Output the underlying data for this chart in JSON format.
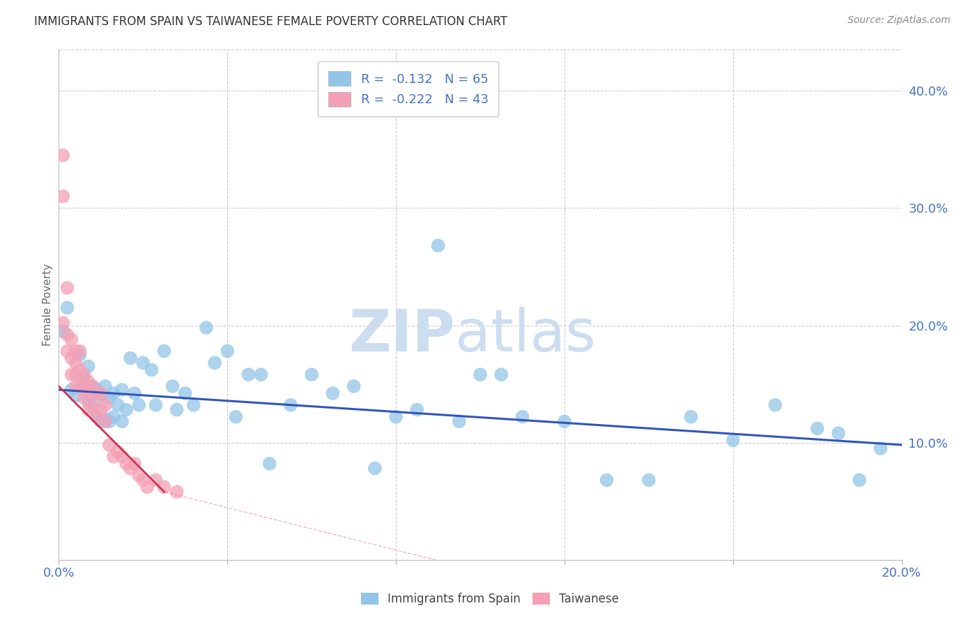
{
  "title": "IMMIGRANTS FROM SPAIN VS TAIWANESE FEMALE POVERTY CORRELATION CHART",
  "source": "Source: ZipAtlas.com",
  "ylabel": "Female Poverty",
  "x_min": 0.0,
  "x_max": 0.2,
  "y_min": 0.0,
  "y_max": 0.435,
  "x_ticks": [
    0.0,
    0.04,
    0.08,
    0.12,
    0.16,
    0.2
  ],
  "y_ticks_right": [
    0.1,
    0.2,
    0.3,
    0.4
  ],
  "y_tick_labels_right": [
    "10.0%",
    "20.0%",
    "30.0%",
    "40.0%"
  ],
  "legend_label1": "Immigrants from Spain",
  "legend_label2": "Taiwanese",
  "r1": -0.132,
  "n1": 65,
  "r2": -0.222,
  "n2": 43,
  "color_blue": "#92C5E8",
  "color_pink": "#F4A0B5",
  "color_line_blue": "#3355BB",
  "color_line_pink": "#CC3355",
  "color_axis_text": "#4472C4",
  "color_grid": "#cccccc",
  "watermark_zip": "ZIP",
  "watermark_atlas": "atlas",
  "blue_line_x": [
    0.0,
    0.2
  ],
  "blue_line_y": [
    0.145,
    0.098
  ],
  "pink_line_x": [
    0.0,
    0.025
  ],
  "pink_line_y": [
    0.148,
    0.058
  ],
  "blue_dots_x": [
    0.001,
    0.002,
    0.003,
    0.004,
    0.005,
    0.006,
    0.006,
    0.007,
    0.007,
    0.008,
    0.008,
    0.009,
    0.009,
    0.01,
    0.01,
    0.011,
    0.011,
    0.012,
    0.012,
    0.013,
    0.013,
    0.014,
    0.015,
    0.015,
    0.016,
    0.017,
    0.018,
    0.019,
    0.02,
    0.022,
    0.023,
    0.025,
    0.027,
    0.028,
    0.03,
    0.032,
    0.035,
    0.037,
    0.04,
    0.042,
    0.045,
    0.048,
    0.05,
    0.055,
    0.06,
    0.065,
    0.07,
    0.075,
    0.08,
    0.085,
    0.09,
    0.1,
    0.11,
    0.12,
    0.13,
    0.14,
    0.15,
    0.16,
    0.17,
    0.18,
    0.185,
    0.19,
    0.195,
    0.095,
    0.105
  ],
  "blue_dots_y": [
    0.195,
    0.215,
    0.145,
    0.14,
    0.175,
    0.155,
    0.148,
    0.135,
    0.165,
    0.148,
    0.13,
    0.145,
    0.122,
    0.14,
    0.118,
    0.148,
    0.12,
    0.138,
    0.118,
    0.142,
    0.122,
    0.132,
    0.145,
    0.118,
    0.128,
    0.172,
    0.142,
    0.132,
    0.168,
    0.162,
    0.132,
    0.178,
    0.148,
    0.128,
    0.142,
    0.132,
    0.198,
    0.168,
    0.178,
    0.122,
    0.158,
    0.158,
    0.082,
    0.132,
    0.158,
    0.142,
    0.148,
    0.078,
    0.122,
    0.128,
    0.268,
    0.158,
    0.122,
    0.118,
    0.068,
    0.068,
    0.122,
    0.102,
    0.132,
    0.112,
    0.108,
    0.068,
    0.095,
    0.118,
    0.158
  ],
  "pink_dots_x": [
    0.001,
    0.001,
    0.001,
    0.002,
    0.002,
    0.002,
    0.003,
    0.003,
    0.003,
    0.004,
    0.004,
    0.004,
    0.004,
    0.005,
    0.005,
    0.005,
    0.006,
    0.006,
    0.006,
    0.007,
    0.007,
    0.007,
    0.008,
    0.008,
    0.009,
    0.009,
    0.01,
    0.01,
    0.011,
    0.011,
    0.012,
    0.013,
    0.014,
    0.015,
    0.016,
    0.017,
    0.018,
    0.019,
    0.02,
    0.021,
    0.023,
    0.025,
    0.028
  ],
  "pink_dots_y": [
    0.345,
    0.31,
    0.202,
    0.232,
    0.192,
    0.178,
    0.188,
    0.172,
    0.158,
    0.178,
    0.168,
    0.158,
    0.148,
    0.178,
    0.162,
    0.148,
    0.158,
    0.148,
    0.138,
    0.152,
    0.142,
    0.128,
    0.148,
    0.132,
    0.142,
    0.122,
    0.142,
    0.128,
    0.132,
    0.118,
    0.098,
    0.088,
    0.092,
    0.088,
    0.082,
    0.078,
    0.082,
    0.072,
    0.068,
    0.062,
    0.068,
    0.062,
    0.058
  ]
}
